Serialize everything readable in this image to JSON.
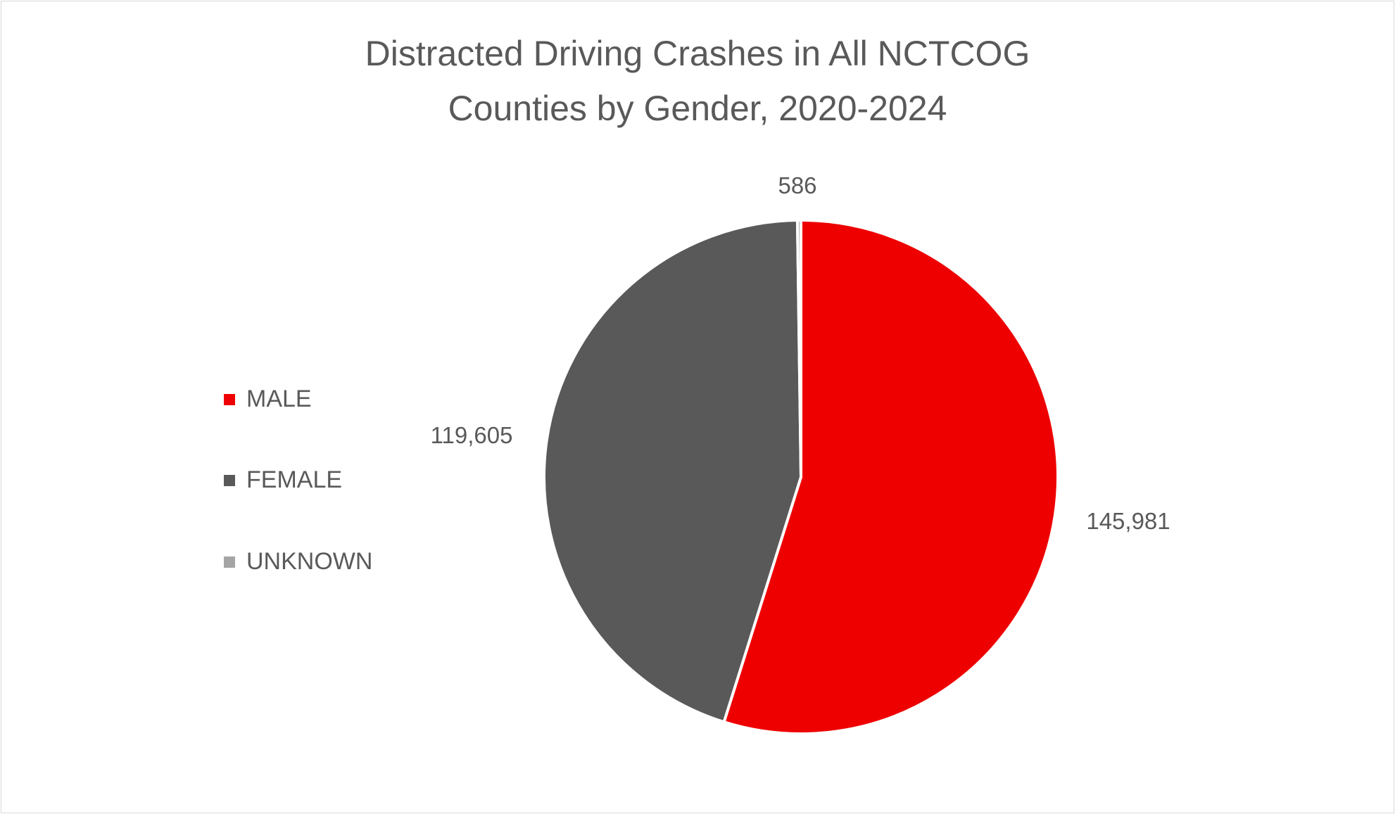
{
  "chart_data": {
    "type": "pie",
    "title_lines": [
      "Distracted Driving Crashes in All NCTCOG",
      "Counties by Gender, 2020-2024"
    ],
    "slices": [
      {
        "label": "MALE",
        "value": 145981,
        "display": "145,981",
        "color": "#ee0000"
      },
      {
        "label": "FEMALE",
        "value": 119605,
        "display": "119,605",
        "color": "#595959"
      },
      {
        "label": "UNKNOWN",
        "value": 586,
        "display": "586",
        "color": "#a5a5a5"
      }
    ],
    "start_angle": "top, clockwise",
    "legend_position": "left"
  }
}
